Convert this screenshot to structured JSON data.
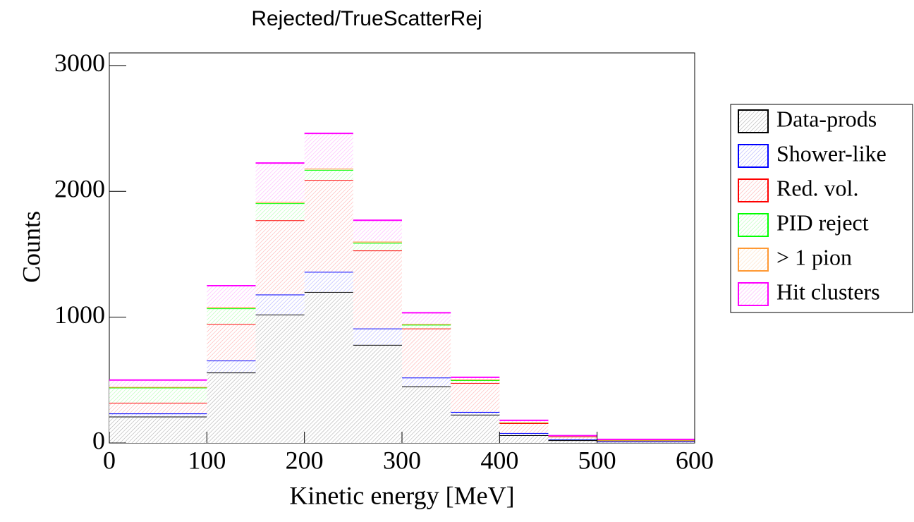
{
  "chart_data": {
    "type": "histogram",
    "title": "Rejected/TrueScatterRej",
    "x_label": "Kinetic energy [MeV]",
    "y_label": "Counts",
    "bins": [
      0,
      100,
      150,
      200,
      250,
      300,
      350,
      400,
      450,
      500,
      600
    ],
    "stacked": true,
    "legend": "right",
    "series": [
      {
        "name": "Data-prods",
        "color": "#000000",
        "values": [
          210,
          560,
          1020,
          1200,
          780,
          450,
          225,
          62,
          22,
          11
        ]
      },
      {
        "name": "Shower-like",
        "color": "#0000ff",
        "values": [
          25,
          95,
          160,
          160,
          130,
          70,
          22,
          17,
          6,
          2
        ]
      },
      {
        "name": "Red. vol.",
        "color": "#ff0000",
        "values": [
          85,
          290,
          590,
          730,
          620,
          390,
          230,
          78,
          23,
          9
        ]
      },
      {
        "name": "PID reject",
        "color": "#00ff00",
        "values": [
          120,
          125,
          135,
          80,
          60,
          30,
          22,
          6,
          2,
          1
        ]
      },
      {
        "name": "> 1 pion",
        "color": "#ff9933",
        "values": [
          5,
          10,
          10,
          10,
          10,
          5,
          5,
          1,
          1,
          1
        ]
      },
      {
        "name": "Hit clusters",
        "color": "#ff00ff",
        "values": [
          55,
          170,
          310,
          280,
          170,
          90,
          18,
          16,
          4,
          5
        ]
      }
    ],
    "xlim": [
      0,
      600
    ],
    "xticks": [
      0,
      100,
      200,
      300,
      400,
      500,
      600
    ],
    "ylim": [
      0,
      3100
    ],
    "yticks": [
      0,
      1000,
      2000,
      3000
    ]
  }
}
